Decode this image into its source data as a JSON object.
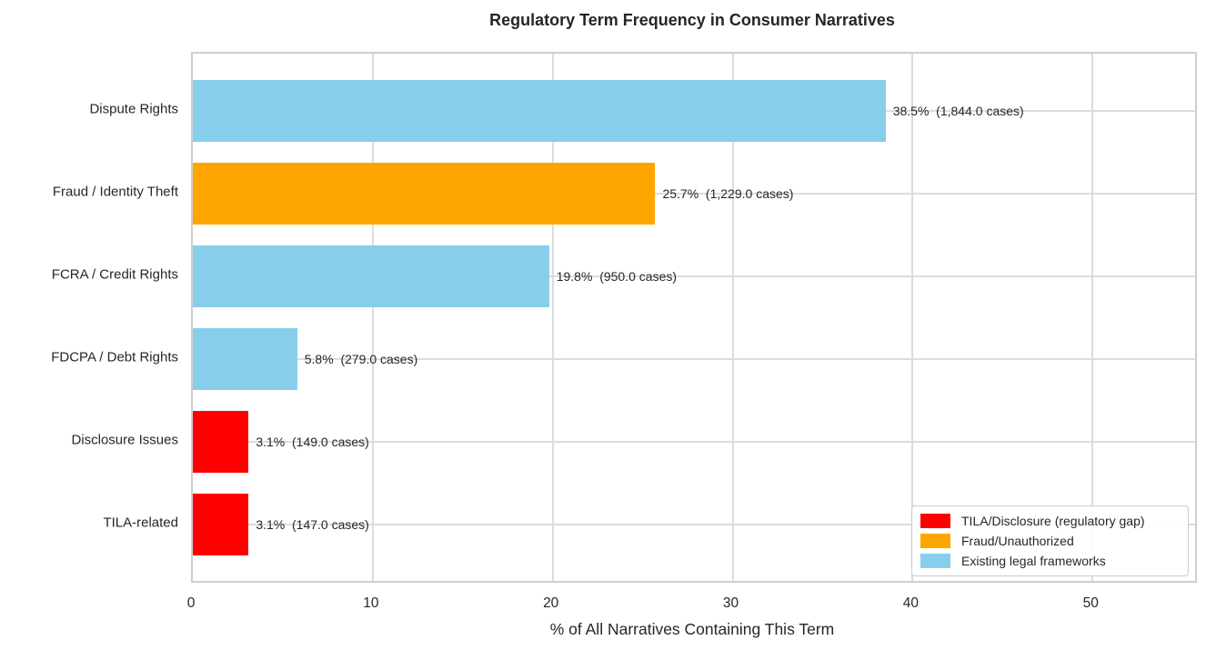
{
  "title": "Regulatory Term Frequency in Consumer Narratives",
  "colors": {
    "red": "#FF0000",
    "orange": "#FFA500",
    "skyblue": "#87CEEB",
    "grid": "#DCDCDC",
    "spine": "#CFCFCF",
    "text": "#262626"
  },
  "chart_data": {
    "type": "bar",
    "orientation": "horizontal",
    "title": "Regulatory Term Frequency in Consumer Narratives",
    "xlabel": "% of All Narratives Containing This Term",
    "ylabel": "",
    "xlim": [
      0,
      55.7
    ],
    "xticks": [
      0,
      10,
      20,
      30,
      40,
      50
    ],
    "grid": true,
    "legend_position": "lower right",
    "categories": [
      "Dispute Rights",
      "Fraud / Identity Theft",
      "FCRA / Credit Rights",
      "FDCPA / Debt Rights",
      "Disclosure Issues",
      "TILA-related"
    ],
    "values": [
      38.5,
      25.7,
      19.8,
      5.8,
      3.1,
      3.1
    ],
    "cases": [
      1844.0,
      1229.0,
      950.0,
      279.0,
      149.0,
      147.0
    ],
    "bar_labels": [
      "38.5%  (1,844.0 cases)",
      "25.7%  (1,229.0 cases)",
      "19.8%  (950.0 cases)",
      "5.8%  (279.0 cases)",
      "3.1%  (149.0 cases)",
      "3.1%  (147.0 cases)"
    ],
    "bar_colors": [
      "#87CEEB",
      "#FFA500",
      "#87CEEB",
      "#87CEEB",
      "#FF0000",
      "#FF0000"
    ],
    "legend": [
      {
        "label": "TILA/Disclosure (regulatory gap)",
        "color": "#FF0000"
      },
      {
        "label": "Fraud/Unauthorized",
        "color": "#FFA500"
      },
      {
        "label": "Existing legal frameworks",
        "color": "#87CEEB"
      }
    ]
  }
}
